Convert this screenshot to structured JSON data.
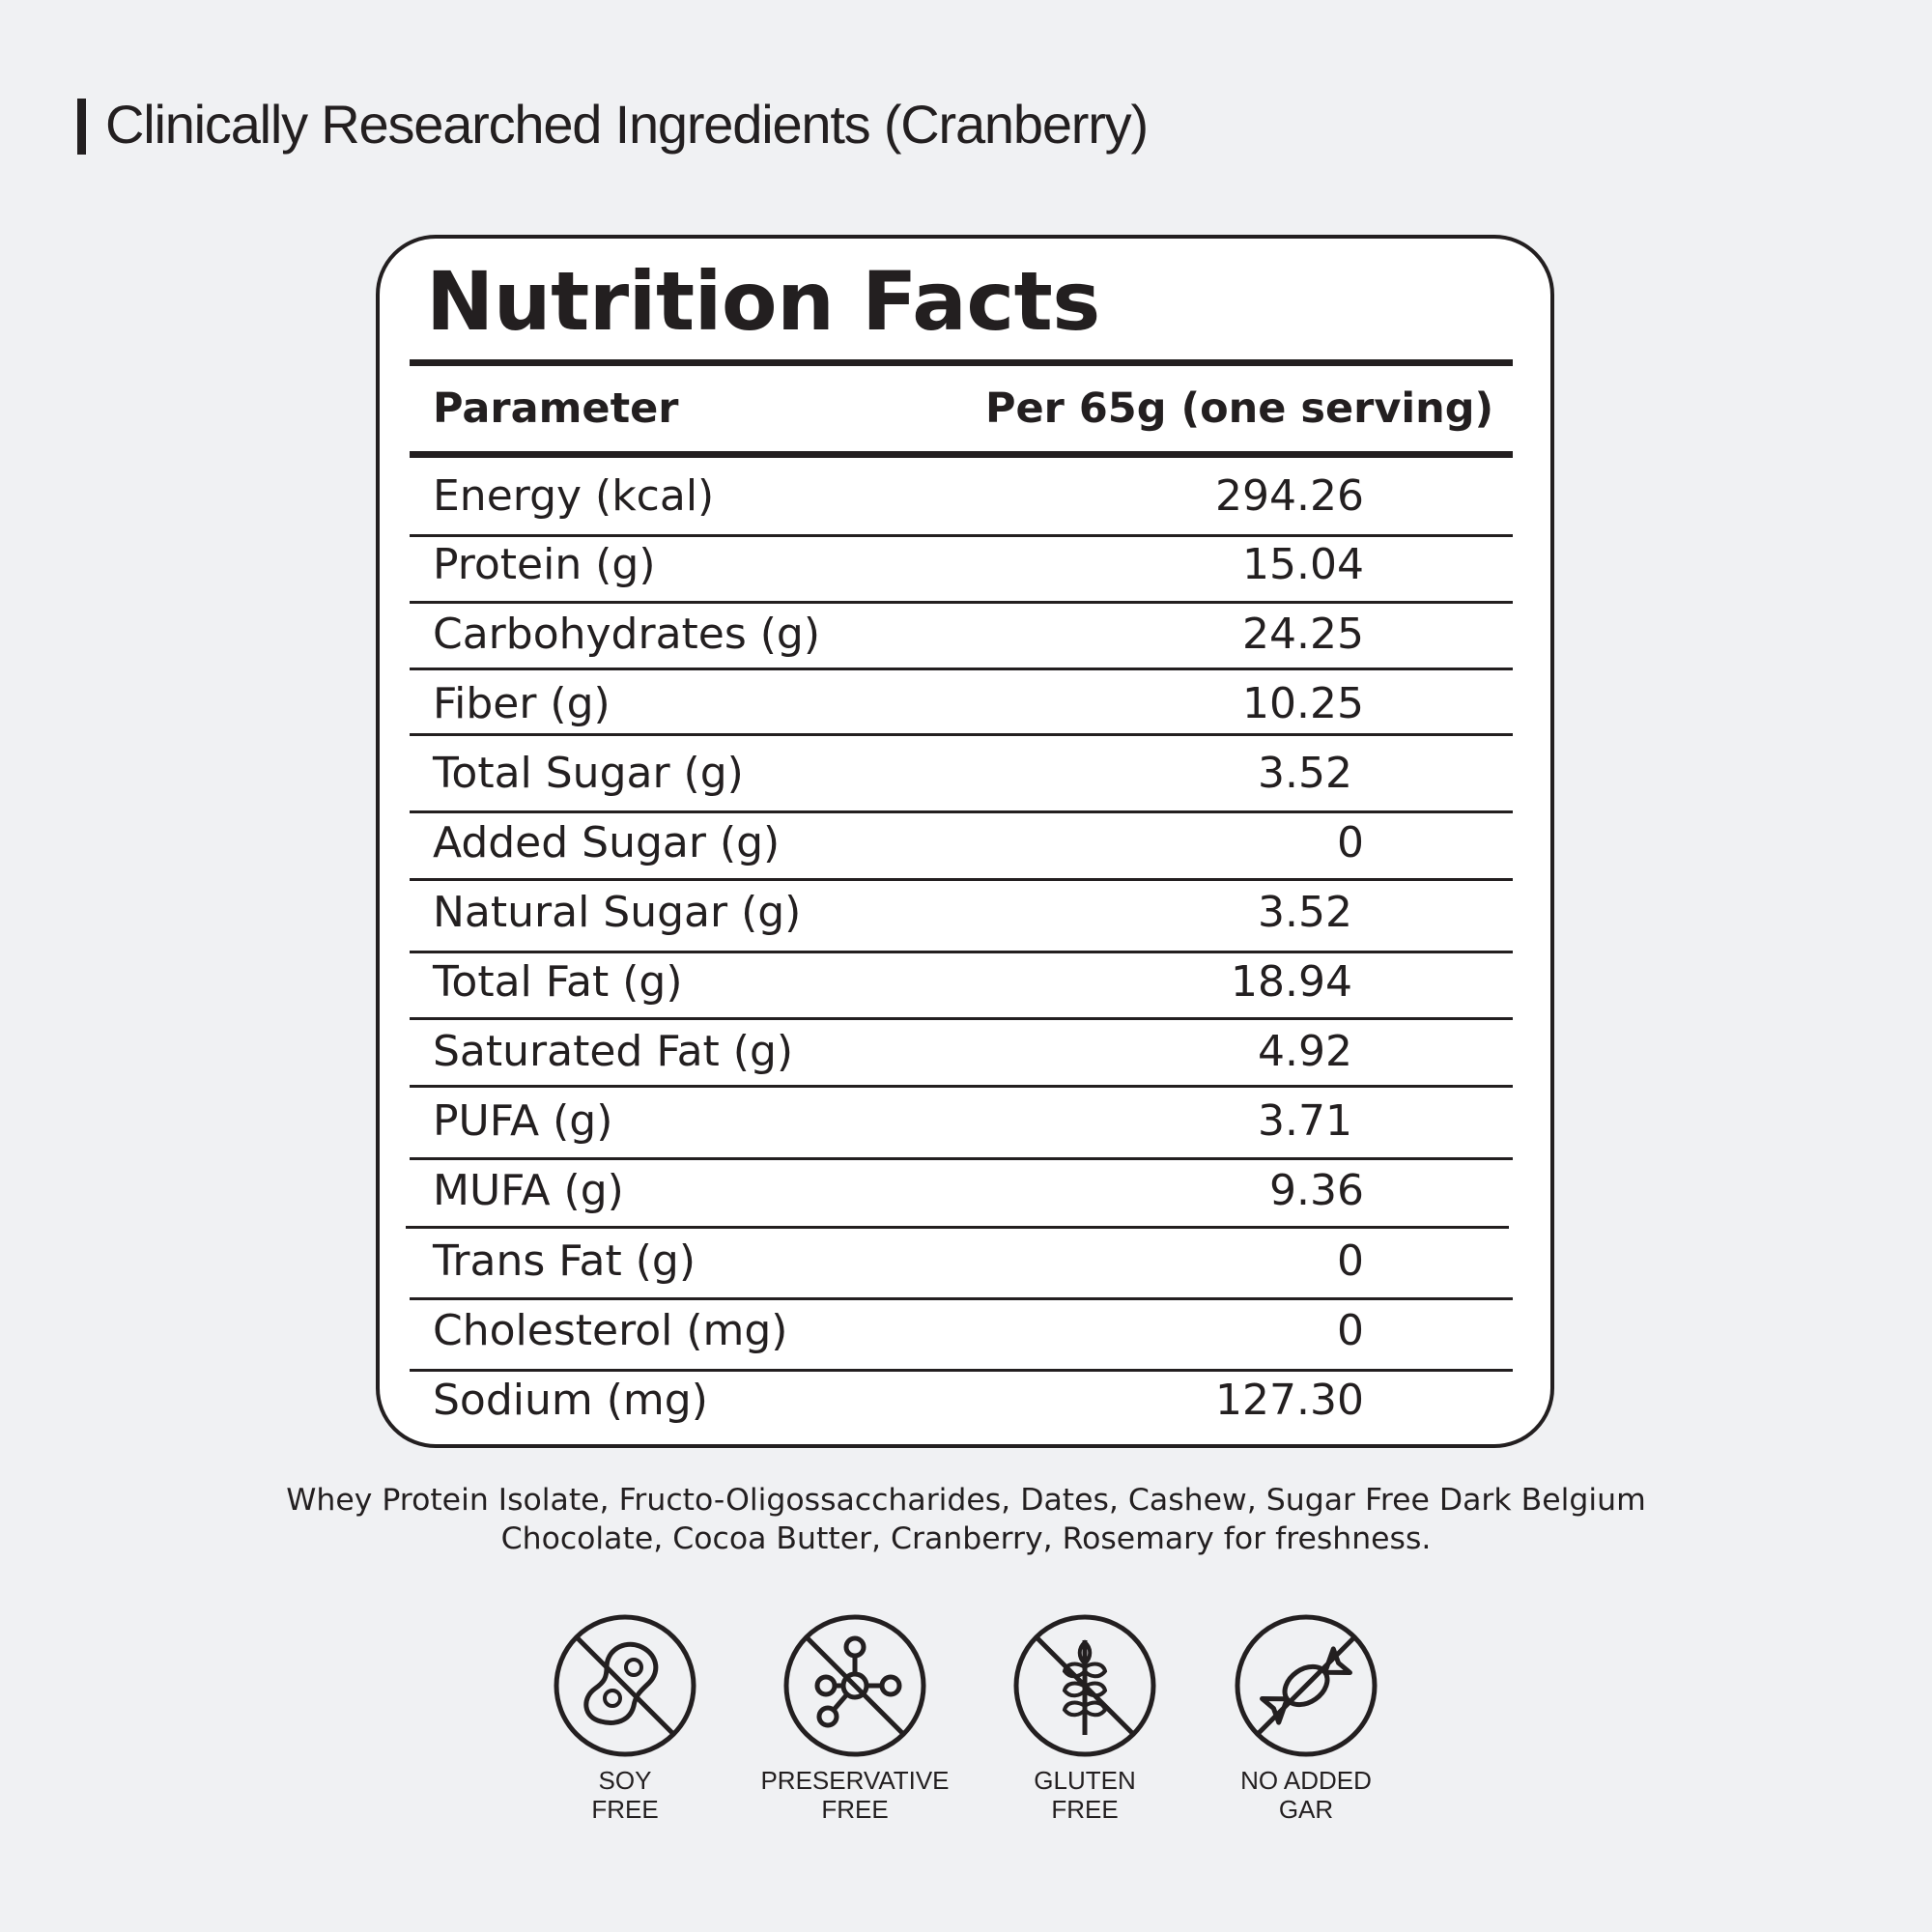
{
  "header": {
    "title": "Clinically Researched Ingredients (Cranberry)"
  },
  "panel": {
    "title": "Nutrition Facts",
    "columns": {
      "parameter": "Parameter",
      "per_serving": "Per 65g (one serving)"
    },
    "rows": [
      {
        "label": "Energy (kcal)",
        "value": "294.26"
      },
      {
        "label": "Protein (g)",
        "value": "15.04"
      },
      {
        "label": "Carbohydrates (g)",
        "value": "24.25"
      },
      {
        "label": "Fiber (g)",
        "value": "10.25"
      },
      {
        "label": "Total Sugar (g)",
        "value": "3.52"
      },
      {
        "label": "Added Sugar (g)",
        "value": "0"
      },
      {
        "label": "Natural Sugar (g)",
        "value": "3.52"
      },
      {
        "label": "Total Fat (g)",
        "value": "18.94"
      },
      {
        "label": "Saturated Fat (g)",
        "value": "4.92"
      },
      {
        "label": "PUFA (g)",
        "value": "3.71"
      },
      {
        "label": "MUFA (g)",
        "value": "9.36"
      },
      {
        "label": "Trans Fat (g)",
        "value": "0"
      },
      {
        "label": "Cholesterol (mg)",
        "value": "0"
      },
      {
        "label": "Sodium (mg)",
        "value": "127.30"
      }
    ]
  },
  "ingredients": {
    "line1": "Whey Protein Isolate, Fructo-Oligossaccharides, Dates, Cashew, Sugar Free Dark Belgium",
    "line2": "Chocolate, Cocoa Butter, Cranberry, Rosemary for freshness."
  },
  "badges": [
    {
      "icon": "no-soy-icon",
      "label": "SOY\nFREE"
    },
    {
      "icon": "no-preservative-icon",
      "label": "PRESERVATIVE\nFREE"
    },
    {
      "icon": "no-gluten-icon",
      "label": "GLUTEN\nFREE"
    },
    {
      "icon": "no-sugar-icon",
      "label": "NO ADDED\n   GAR"
    }
  ]
}
